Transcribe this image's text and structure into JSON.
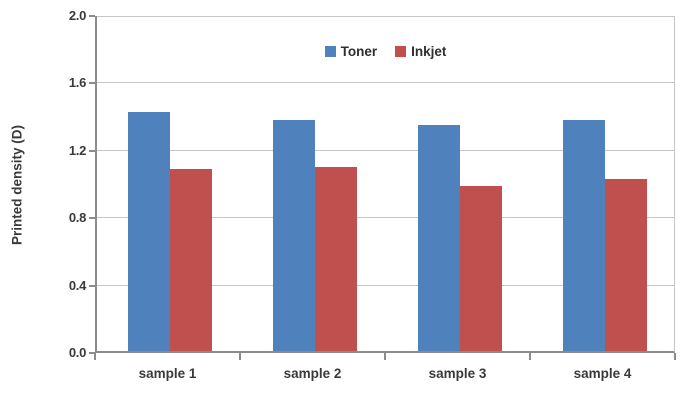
{
  "chart_data": {
    "type": "bar",
    "title": "",
    "xlabel": "",
    "ylabel": "Printed density (D)",
    "categories": [
      "sample 1",
      "sample 2",
      "sample 3",
      "sample 4"
    ],
    "series": [
      {
        "name": "Toner",
        "color": "#4F81BD",
        "values": [
          1.42,
          1.37,
          1.34,
          1.37
        ]
      },
      {
        "name": "Inkjet",
        "color": "#C0504D",
        "values": [
          1.08,
          1.09,
          0.98,
          1.02
        ]
      }
    ],
    "ylim": [
      0.0,
      2.0
    ],
    "ytick_step": 0.4,
    "ytick_labels": [
      "0.0",
      "0.4",
      "0.8",
      "1.2",
      "1.6",
      "2.0"
    ],
    "grid": "horizontal",
    "legend_position": "top-center",
    "colors": {
      "gridline": "#C6C6C6",
      "axis": "#8C8C8C",
      "text": "#3A3A3A"
    }
  }
}
